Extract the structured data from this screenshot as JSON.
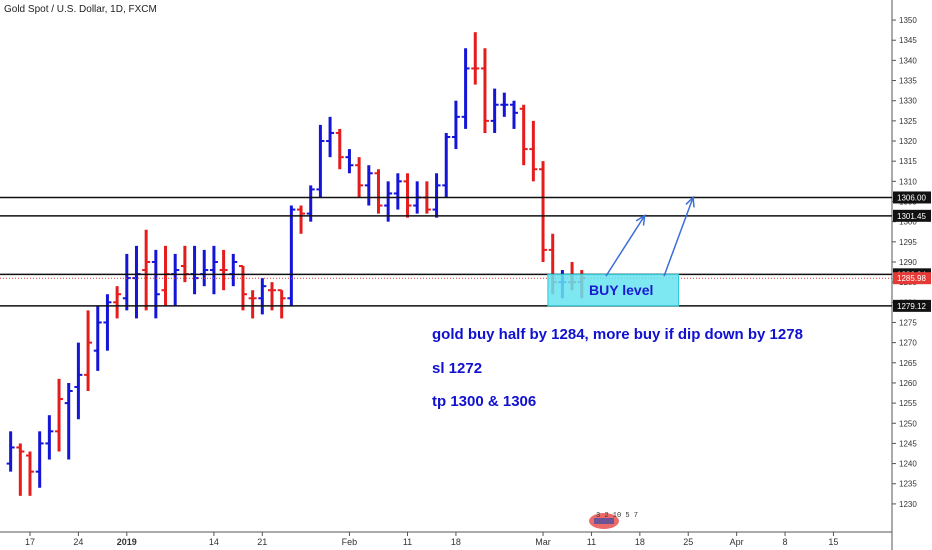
{
  "chart_data": {
    "type": "ohlc",
    "title": "Gold Spot / U.S. Dollar, 1D, FXCM",
    "ylim": [
      1227,
      1352
    ],
    "y_ticks": [
      1230,
      1235,
      1240,
      1245,
      1250,
      1255,
      1260,
      1265,
      1270,
      1275,
      1280,
      1285,
      1290,
      1295,
      1300,
      1305,
      1310,
      1315,
      1320,
      1325,
      1330,
      1335,
      1340,
      1345,
      1350
    ],
    "x_ticks": [
      {
        "label": "17",
        "day": 0
      },
      {
        "label": "24",
        "day": 5
      },
      {
        "label": "2019",
        "day": 10
      },
      {
        "label": "14",
        "day": 19
      },
      {
        "label": "21",
        "day": 24
      },
      {
        "label": "Feb",
        "day": 33
      },
      {
        "label": "11",
        "day": 39
      },
      {
        "label": "18",
        "day": 44
      },
      {
        "label": "Mar",
        "day": 53
      },
      {
        "label": "11",
        "day": 58
      },
      {
        "label": "18",
        "day": 63
      },
      {
        "label": "25",
        "day": 68
      },
      {
        "label": "Apr",
        "day": 73
      },
      {
        "label": "8",
        "day": 78
      },
      {
        "label": "15",
        "day": 83
      }
    ],
    "bars": [
      {
        "day": -2,
        "o": 1240,
        "h": 1248,
        "l": 1238,
        "c": 1244,
        "dir": "up"
      },
      {
        "day": -1,
        "o": 1244,
        "h": 1245,
        "l": 1232,
        "c": 1243,
        "dir": "down"
      },
      {
        "day": 0,
        "o": 1242,
        "h": 1243,
        "l": 1232,
        "c": 1238,
        "dir": "down"
      },
      {
        "day": 1,
        "o": 1238,
        "h": 1248,
        "l": 1234,
        "c": 1245,
        "dir": "up"
      },
      {
        "day": 2,
        "o": 1245,
        "h": 1252,
        "l": 1241,
        "c": 1248,
        "dir": "up"
      },
      {
        "day": 3,
        "o": 1248,
        "h": 1261,
        "l": 1243,
        "c": 1256,
        "dir": "down"
      },
      {
        "day": 4,
        "o": 1255,
        "h": 1260,
        "l": 1241,
        "c": 1258,
        "dir": "up"
      },
      {
        "day": 5,
        "o": 1259,
        "h": 1270,
        "l": 1251,
        "c": 1262,
        "dir": "up"
      },
      {
        "day": 6,
        "o": 1262,
        "h": 1278,
        "l": 1258,
        "c": 1270,
        "dir": "red"
      },
      {
        "day": 7,
        "o": 1268,
        "h": 1279,
        "l": 1263,
        "c": 1275,
        "dir": "up"
      },
      {
        "day": 8,
        "o": 1275,
        "h": 1282,
        "l": 1268,
        "c": 1280,
        "dir": "up"
      },
      {
        "day": 9,
        "o": 1280,
        "h": 1284,
        "l": 1276,
        "c": 1282,
        "dir": "down"
      },
      {
        "day": 10,
        "o": 1281,
        "h": 1292,
        "l": 1278,
        "c": 1286,
        "dir": "up"
      },
      {
        "day": 11,
        "o": 1286,
        "h": 1294,
        "l": 1276,
        "c": 1287,
        "dir": "up"
      },
      {
        "day": 12,
        "o": 1288,
        "h": 1298,
        "l": 1278,
        "c": 1290,
        "dir": "down"
      },
      {
        "day": 13,
        "o": 1290,
        "h": 1293,
        "l": 1276,
        "c": 1282,
        "dir": "up"
      },
      {
        "day": 14,
        "o": 1283,
        "h": 1294,
        "l": 1279,
        "c": 1287,
        "dir": "down"
      },
      {
        "day": 15,
        "o": 1287,
        "h": 1292,
        "l": 1279,
        "c": 1288,
        "dir": "up"
      },
      {
        "day": 16,
        "o": 1289,
        "h": 1294,
        "l": 1285,
        "c": 1287,
        "dir": "down"
      },
      {
        "day": 17,
        "o": 1287,
        "h": 1294,
        "l": 1282,
        "c": 1286,
        "dir": "up"
      },
      {
        "day": 18,
        "o": 1287,
        "h": 1293,
        "l": 1284,
        "c": 1288,
        "dir": "up"
      },
      {
        "day": 19,
        "o": 1288,
        "h": 1294,
        "l": 1282,
        "c": 1290,
        "dir": "up"
      },
      {
        "day": 20,
        "o": 1288,
        "h": 1293,
        "l": 1283,
        "c": 1288,
        "dir": "down"
      },
      {
        "day": 21,
        "o": 1287,
        "h": 1292,
        "l": 1284,
        "c": 1290,
        "dir": "up"
      },
      {
        "day": 22,
        "o": 1289,
        "h": 1289,
        "l": 1278,
        "c": 1282,
        "dir": "down"
      },
      {
        "day": 23,
        "o": 1281,
        "h": 1283,
        "l": 1276,
        "c": 1281,
        "dir": "down"
      },
      {
        "day": 24,
        "o": 1281,
        "h": 1286,
        "l": 1277,
        "c": 1284,
        "dir": "up"
      },
      {
        "day": 25,
        "o": 1283,
        "h": 1285,
        "l": 1278,
        "c": 1283,
        "dir": "down"
      },
      {
        "day": 26,
        "o": 1283,
        "h": 1283,
        "l": 1276,
        "c": 1281,
        "dir": "down"
      },
      {
        "day": 27,
        "o": 1281,
        "h": 1304,
        "l": 1279,
        "c": 1303,
        "dir": "up"
      },
      {
        "day": 28,
        "o": 1303,
        "h": 1304,
        "l": 1297,
        "c": 1302,
        "dir": "down"
      },
      {
        "day": 29,
        "o": 1302,
        "h": 1309,
        "l": 1300,
        "c": 1308,
        "dir": "up"
      },
      {
        "day": 30,
        "o": 1308,
        "h": 1324,
        "l": 1306,
        "c": 1320,
        "dir": "up"
      },
      {
        "day": 31,
        "o": 1320,
        "h": 1326,
        "l": 1316,
        "c": 1322,
        "dir": "up"
      },
      {
        "day": 32,
        "o": 1322,
        "h": 1323,
        "l": 1313,
        "c": 1316,
        "dir": "down"
      },
      {
        "day": 33,
        "o": 1316,
        "h": 1318,
        "l": 1312,
        "c": 1314,
        "dir": "up"
      },
      {
        "day": 34,
        "o": 1314,
        "h": 1316,
        "l": 1306,
        "c": 1309,
        "dir": "down"
      },
      {
        "day": 35,
        "o": 1309,
        "h": 1314,
        "l": 1304,
        "c": 1312,
        "dir": "up"
      },
      {
        "day": 36,
        "o": 1312,
        "h": 1313,
        "l": 1302,
        "c": 1304,
        "dir": "down"
      },
      {
        "day": 37,
        "o": 1304,
        "h": 1310,
        "l": 1300,
        "c": 1307,
        "dir": "up"
      },
      {
        "day": 38,
        "o": 1307,
        "h": 1312,
        "l": 1303,
        "c": 1310,
        "dir": "up"
      },
      {
        "day": 39,
        "o": 1310,
        "h": 1312,
        "l": 1301,
        "c": 1304,
        "dir": "down"
      },
      {
        "day": 40,
        "o": 1304,
        "h": 1310,
        "l": 1302,
        "c": 1306,
        "dir": "up"
      },
      {
        "day": 41,
        "o": 1306,
        "h": 1310,
        "l": 1302,
        "c": 1303,
        "dir": "down"
      },
      {
        "day": 42,
        "o": 1303,
        "h": 1312,
        "l": 1301,
        "c": 1309,
        "dir": "up"
      },
      {
        "day": 43,
        "o": 1309,
        "h": 1322,
        "l": 1306,
        "c": 1321,
        "dir": "up"
      },
      {
        "day": 44,
        "o": 1321,
        "h": 1330,
        "l": 1318,
        "c": 1326,
        "dir": "up"
      },
      {
        "day": 45,
        "o": 1326,
        "h": 1343,
        "l": 1323,
        "c": 1338,
        "dir": "up"
      },
      {
        "day": 46,
        "o": 1338,
        "h": 1347,
        "l": 1334,
        "c": 1338,
        "dir": "down"
      },
      {
        "day": 47,
        "o": 1338,
        "h": 1343,
        "l": 1322,
        "c": 1325,
        "dir": "down"
      },
      {
        "day": 48,
        "o": 1325,
        "h": 1333,
        "l": 1322,
        "c": 1329,
        "dir": "up"
      },
      {
        "day": 49,
        "o": 1329,
        "h": 1332,
        "l": 1326,
        "c": 1329,
        "dir": "up"
      },
      {
        "day": 50,
        "o": 1329,
        "h": 1330,
        "l": 1323,
        "c": 1327,
        "dir": "up"
      },
      {
        "day": 51,
        "o": 1328,
        "h": 1329,
        "l": 1314,
        "c": 1318,
        "dir": "down"
      },
      {
        "day": 52,
        "o": 1318,
        "h": 1325,
        "l": 1310,
        "c": 1313,
        "dir": "down"
      },
      {
        "day": 53,
        "o": 1313,
        "h": 1315,
        "l": 1290,
        "c": 1293,
        "dir": "down"
      },
      {
        "day": 54,
        "o": 1293,
        "h": 1297,
        "l": 1282,
        "c": 1285,
        "dir": "down"
      },
      {
        "day": 55,
        "o": 1285,
        "h": 1288,
        "l": 1281,
        "c": 1285,
        "dir": "up"
      },
      {
        "day": 56,
        "o": 1285,
        "h": 1290,
        "l": 1283,
        "c": 1285,
        "dir": "down"
      },
      {
        "day": 57,
        "o": 1285,
        "h": 1288,
        "l": 1281,
        "c": 1286,
        "dir": "down"
      }
    ],
    "horizontal_levels": [
      1306.0,
      1301.45,
      1286.94,
      1279.12
    ],
    "current_price": 1285.98,
    "price_tags": [
      {
        "label": "1306.00",
        "value": 1306.0,
        "color": "#111111"
      },
      {
        "label": "1301.45",
        "value": 1301.45,
        "color": "#111111"
      },
      {
        "label": "1286.94",
        "value": 1286.94,
        "color": "#111111"
      },
      {
        "label": "1285.98",
        "value": 1285.98,
        "color": "#e53935"
      },
      {
        "label": "1279.12",
        "value": 1279.12,
        "color": "#111111"
      }
    ],
    "buy_zone": {
      "from_day": 53.5,
      "to_day": 67,
      "low": 1279.12,
      "high": 1286.94,
      "label": "BUY level",
      "color": "#66e3f0"
    },
    "arrows": [
      {
        "from_day": 59.5,
        "from_price": 1286.5,
        "to_day": 63.5,
        "to_price": 1301.5
      },
      {
        "from_day": 65.5,
        "from_price": 1286.5,
        "to_day": 68.5,
        "to_price": 1306
      }
    ],
    "colors": {
      "up": "#1515d8",
      "down": "#e51c1c",
      "level": "#111111",
      "arrow": "#3b6fd8"
    }
  },
  "notes": {
    "line1": "gold buy half by 1284, more buy if dip down by 1278",
    "line2": "sl 1272",
    "line3": "tp 1300 & 1306"
  },
  "stamp": "3 2 10 5 7"
}
